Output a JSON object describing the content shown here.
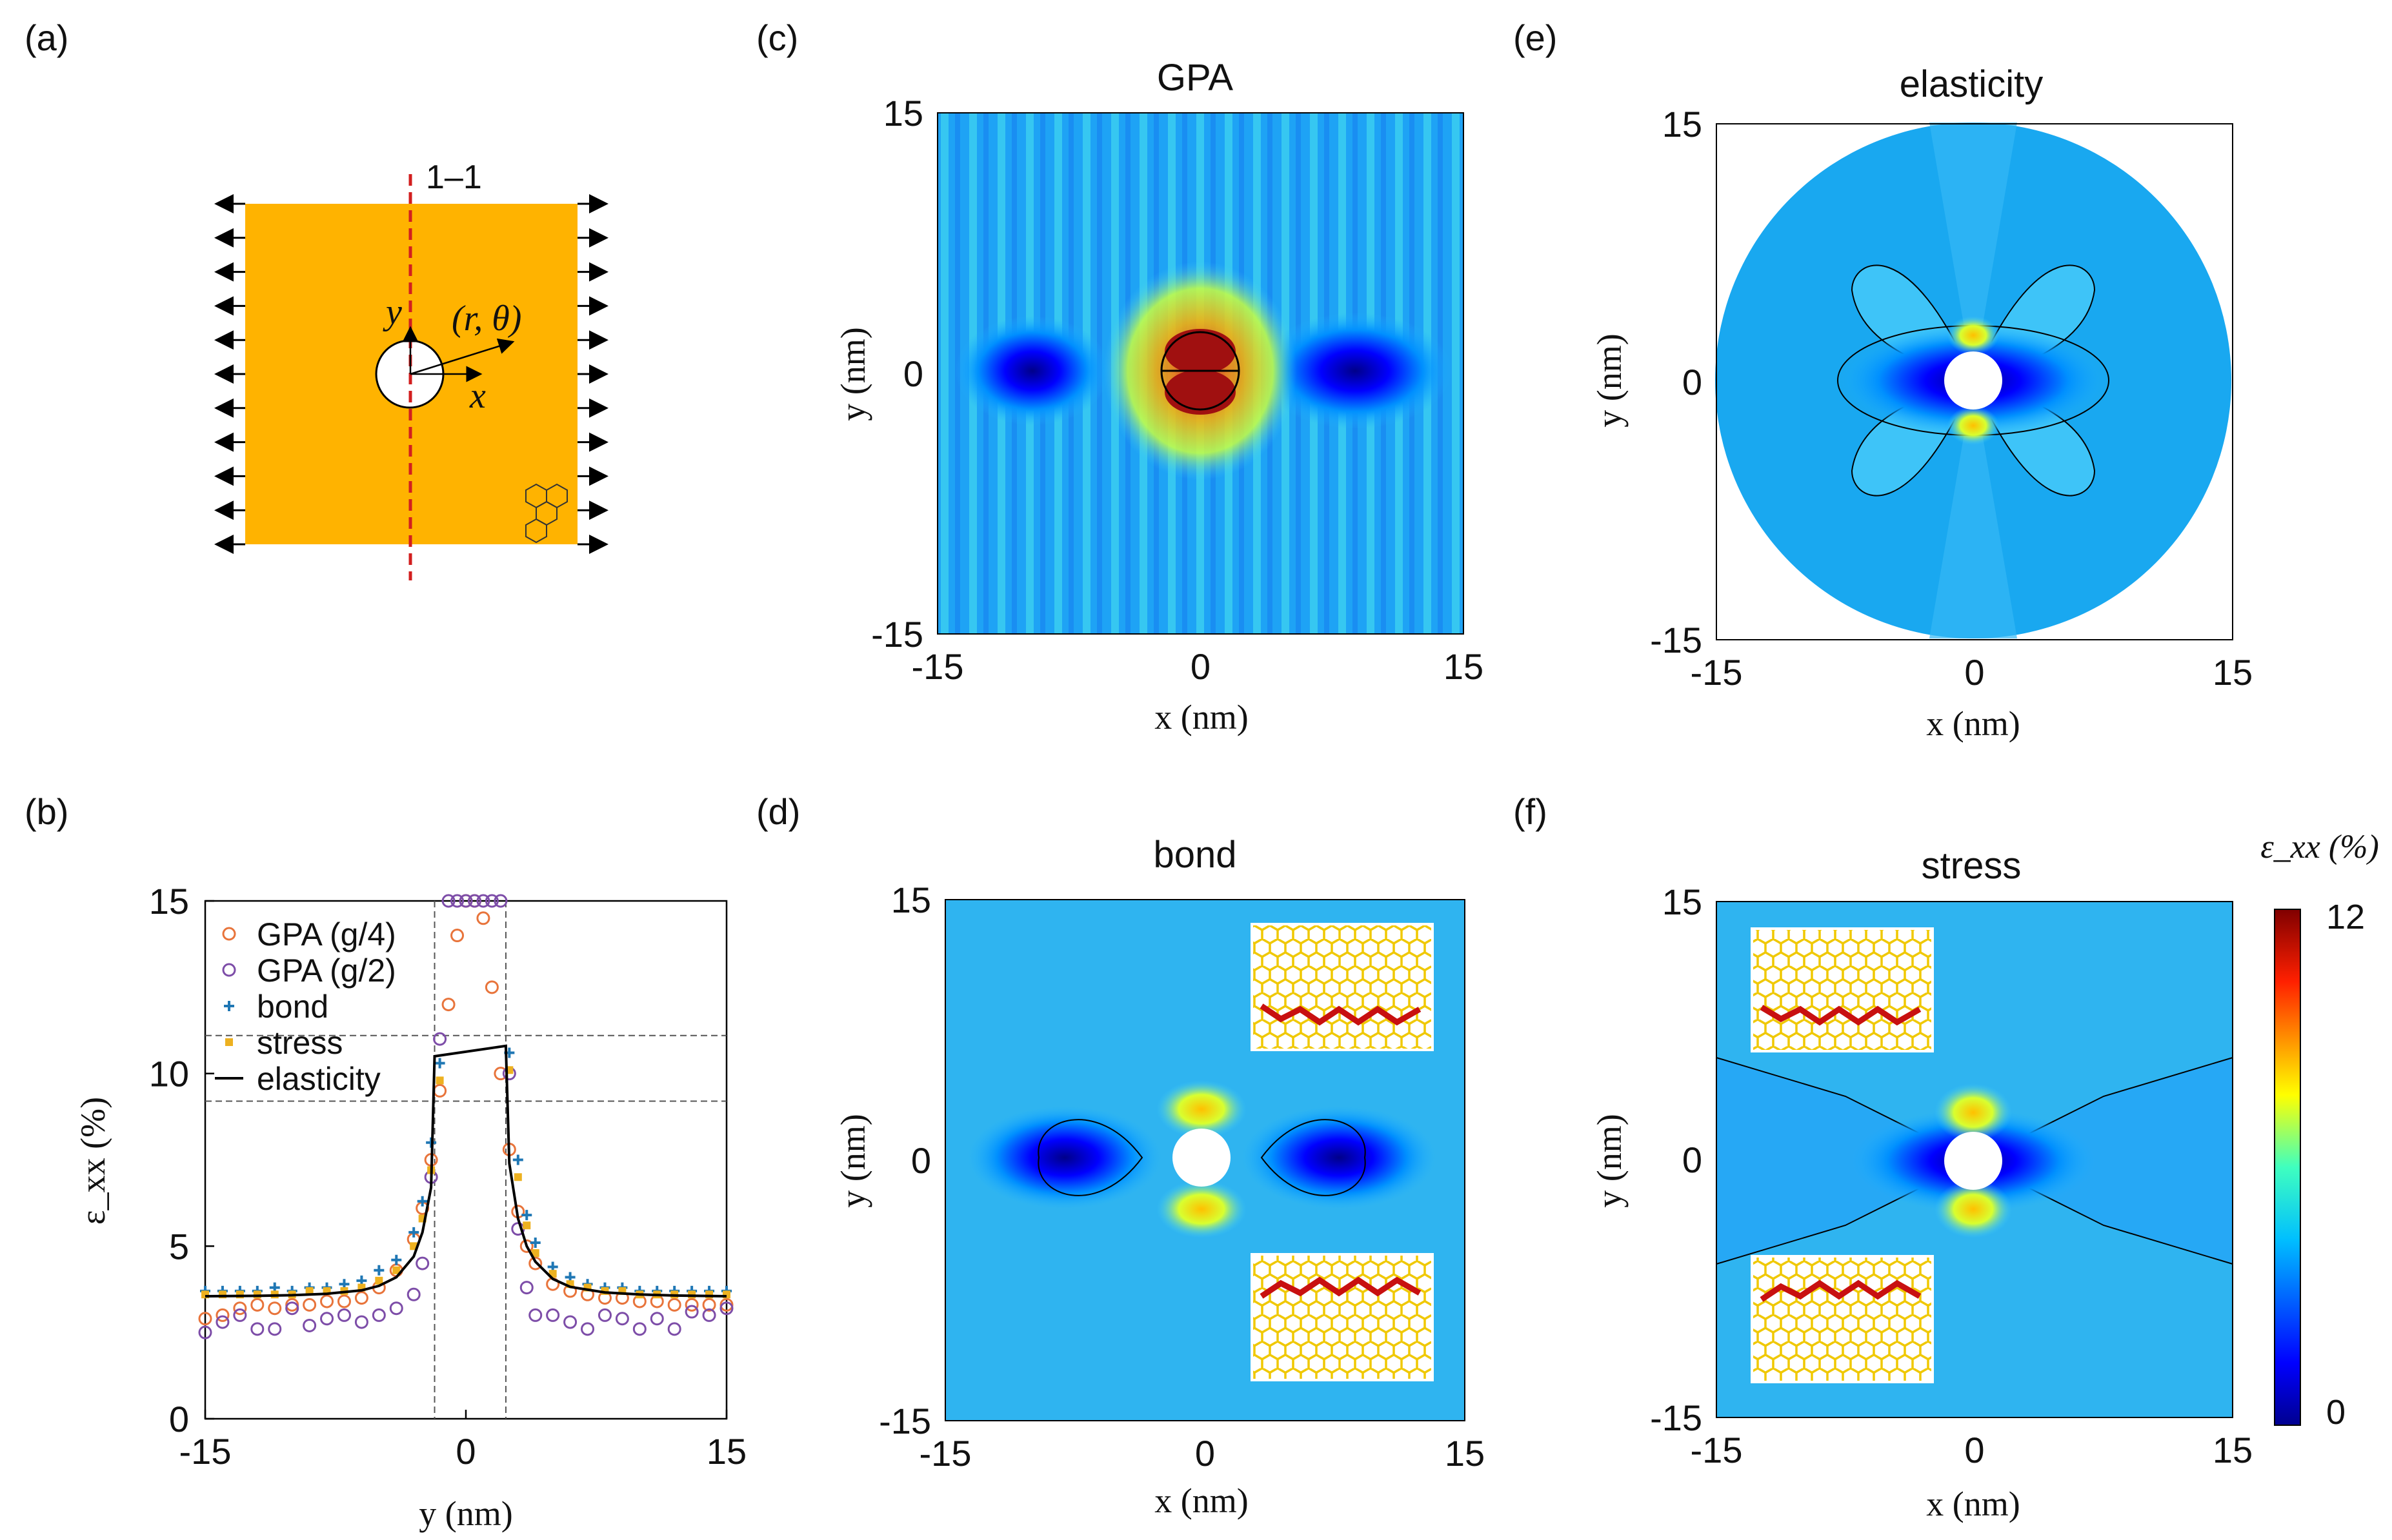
{
  "panels": {
    "a": {
      "label": "(a)",
      "section_label": "1–1",
      "polar_label": "(r, θ)",
      "x_axis": "x",
      "y_axis": "y"
    },
    "b": {
      "label": "(b)"
    },
    "c": {
      "label": "(c)",
      "title": "GPA"
    },
    "d": {
      "label": "(d)",
      "title": "bond"
    },
    "e": {
      "label": "(e)",
      "title": "elasticity"
    },
    "f": {
      "label": "(f)",
      "title": "stress"
    }
  },
  "axes": {
    "x_label": "x (nm)",
    "y_label": "y (nm)",
    "ticks": [
      "-15",
      "0",
      "15"
    ]
  },
  "colorbar": {
    "label": "ε_xx (%)",
    "min": "0",
    "max": "12"
  },
  "colors": {
    "orange_plate": "#FFB300",
    "gpa_g4": "#E8743B",
    "gpa_g2": "#7D4DA8",
    "bond": "#1F77B4",
    "stress": "#EDB120",
    "elasticity": "#000000",
    "red_dash": "#D21F1F"
  },
  "chart_data": [
    {
      "type": "scatter",
      "panel": "b",
      "title": "",
      "xlabel": "y (nm)",
      "ylabel": "ε_xx (%)",
      "xlim": [
        -15,
        15
      ],
      "ylim": [
        0,
        15
      ],
      "xticks": [
        "-15",
        "0",
        "15"
      ],
      "yticks": [
        "0",
        "5",
        "10",
        "15"
      ],
      "legend_position": "top-left",
      "hlines": [
        11.1,
        9.2
      ],
      "vlines": [
        -1.8,
        2.3
      ],
      "series": [
        {
          "name": "GPA (g/4)",
          "marker": "circle",
          "x": [
            -15,
            -14,
            -13,
            -12,
            -11,
            -10,
            -9,
            -8,
            -7,
            -6,
            -5,
            -4,
            -3,
            -2.5,
            -2,
            -1.5,
            -1,
            -0.5,
            0,
            0.5,
            1,
            1.5,
            2,
            2.5,
            3,
            3.5,
            4,
            5,
            6,
            7,
            8,
            9,
            10,
            11,
            12,
            13,
            14,
            15
          ],
          "values": [
            2.9,
            3.0,
            3.2,
            3.3,
            3.2,
            3.3,
            3.3,
            3.4,
            3.4,
            3.5,
            3.8,
            4.3,
            5.2,
            6.1,
            7.5,
            9.5,
            12.0,
            14.0,
            15.0,
            15.0,
            14.5,
            12.5,
            10.0,
            7.8,
            6.0,
            5.0,
            4.5,
            3.9,
            3.7,
            3.6,
            3.5,
            3.5,
            3.4,
            3.4,
            3.3,
            3.3,
            3.3,
            3.3
          ]
        },
        {
          "name": "GPA (g/2)",
          "marker": "circle",
          "x": [
            -15,
            -14,
            -13,
            -12,
            -11,
            -10,
            -9,
            -8,
            -7,
            -6,
            -5,
            -4,
            -3,
            -2.5,
            -2,
            -1.5,
            -1,
            -0.5,
            0,
            0.5,
            1,
            1.5,
            2,
            2.5,
            3,
            3.5,
            4,
            5,
            6,
            7,
            8,
            9,
            10,
            11,
            12,
            13,
            14,
            15
          ],
          "values": [
            2.5,
            2.8,
            3.0,
            2.6,
            2.6,
            3.2,
            2.7,
            2.9,
            3.0,
            2.8,
            3.0,
            3.2,
            3.6,
            4.5,
            7.0,
            11.0,
            15.0,
            15.0,
            15.0,
            15.0,
            15.0,
            15.0,
            15.0,
            10.0,
            5.5,
            3.8,
            3.0,
            3.0,
            2.8,
            2.6,
            3.0,
            2.9,
            2.6,
            2.9,
            2.6,
            3.1,
            3.0,
            3.2
          ]
        },
        {
          "name": "bond",
          "marker": "plus",
          "x": [
            -15,
            -14,
            -13,
            -12,
            -11,
            -10,
            -9,
            -8,
            -7,
            -6,
            -5,
            -4,
            -3,
            -2.5,
            -2,
            -1.5,
            2.5,
            3,
            3.5,
            4,
            5,
            6,
            7,
            8,
            9,
            10,
            11,
            12,
            13,
            14,
            15
          ],
          "values": [
            3.7,
            3.7,
            3.7,
            3.7,
            3.8,
            3.7,
            3.8,
            3.8,
            3.9,
            4.0,
            4.3,
            4.6,
            5.4,
            6.3,
            8.0,
            10.3,
            10.6,
            7.5,
            5.9,
            5.1,
            4.4,
            4.1,
            3.9,
            3.8,
            3.8,
            3.7,
            3.7,
            3.7,
            3.7,
            3.7,
            3.7
          ]
        },
        {
          "name": "stress",
          "marker": "square",
          "x": [
            -15,
            -14,
            -13,
            -12,
            -11,
            -10,
            -9,
            -8,
            -7,
            -6,
            -5,
            -4,
            -3,
            -2.5,
            -2,
            -1.5,
            2.5,
            3,
            3.5,
            4,
            5,
            6,
            7,
            8,
            9,
            10,
            11,
            12,
            13,
            14,
            15
          ],
          "values": [
            3.6,
            3.6,
            3.6,
            3.6,
            3.6,
            3.6,
            3.7,
            3.7,
            3.7,
            3.8,
            4.0,
            4.3,
            5.0,
            5.8,
            7.2,
            9.8,
            10.1,
            7.0,
            5.6,
            4.8,
            4.2,
            3.9,
            3.8,
            3.7,
            3.7,
            3.6,
            3.6,
            3.6,
            3.6,
            3.6,
            3.6
          ]
        },
        {
          "name": "elasticity",
          "marker": "line",
          "x": [
            -15,
            -12,
            -10,
            -8,
            -6,
            -5,
            -4,
            -3,
            -2.5,
            -2,
            -1.8,
            2.3,
            2.5,
            3,
            3.5,
            4,
            5,
            6,
            8,
            10,
            12,
            15
          ],
          "values": [
            3.55,
            3.56,
            3.58,
            3.62,
            3.72,
            3.85,
            4.1,
            4.7,
            5.4,
            6.7,
            10.5,
            10.8,
            7.4,
            5.8,
            5.0,
            4.55,
            4.05,
            3.82,
            3.66,
            3.6,
            3.57,
            3.55
          ]
        }
      ]
    },
    {
      "type": "heatmap",
      "panel": "c",
      "title": "GPA",
      "xlabel": "x (nm)",
      "ylabel": "y (nm)",
      "xlim": [
        -15,
        15
      ],
      "ylim": [
        -15,
        15
      ],
      "color_range": [
        0,
        12
      ]
    },
    {
      "type": "heatmap",
      "panel": "d",
      "title": "bond",
      "xlabel": "x (nm)",
      "ylabel": "y (nm)",
      "xlim": [
        -15,
        15
      ],
      "ylim": [
        -15,
        15
      ],
      "color_range": [
        0,
        12
      ]
    },
    {
      "type": "heatmap",
      "panel": "e",
      "title": "elasticity",
      "xlabel": "x (nm)",
      "ylabel": "y (nm)",
      "xlim": [
        -15,
        15
      ],
      "ylim": [
        -15,
        15
      ],
      "color_range": [
        0,
        12
      ]
    },
    {
      "type": "heatmap",
      "panel": "f",
      "title": "stress",
      "xlabel": "x (nm)",
      "ylabel": "y (nm)",
      "xlim": [
        -15,
        15
      ],
      "ylim": [
        -15,
        15
      ],
      "color_range": [
        0,
        12
      ]
    }
  ]
}
